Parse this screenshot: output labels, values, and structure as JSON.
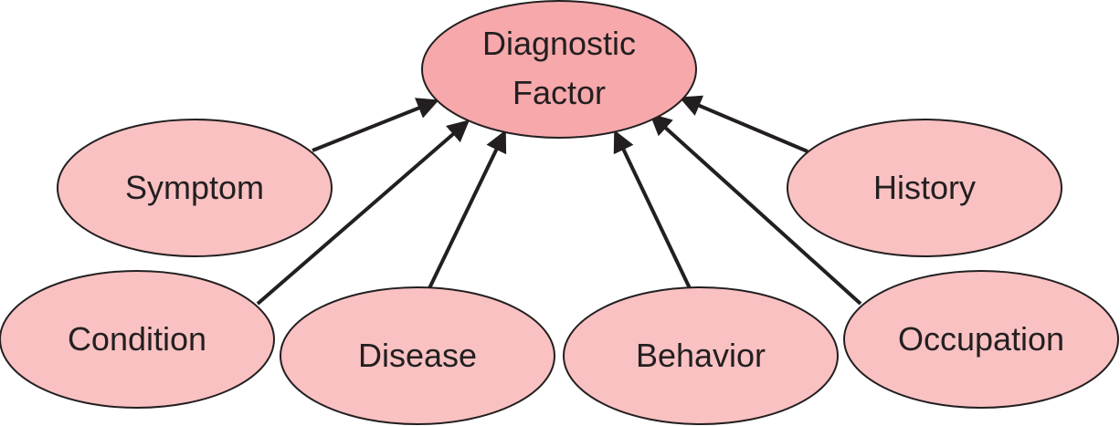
{
  "colors": {
    "center_fill": "#f6a8ab",
    "node_fill": "#f9c1c2",
    "stroke": "#231f20",
    "arrow": "#231f20"
  },
  "nodes": {
    "center": {
      "line1": "Diagnostic",
      "line2": "Factor"
    },
    "symptom": "Symptom",
    "history": "History",
    "condition": "Condition",
    "disease": "Disease",
    "behavior": "Behavior",
    "occupation": "Occupation"
  },
  "edges": [
    {
      "from": "symptom",
      "to": "center"
    },
    {
      "from": "condition",
      "to": "center"
    },
    {
      "from": "disease",
      "to": "center"
    },
    {
      "from": "behavior",
      "to": "center"
    },
    {
      "from": "occupation",
      "to": "center"
    },
    {
      "from": "history",
      "to": "center"
    }
  ]
}
